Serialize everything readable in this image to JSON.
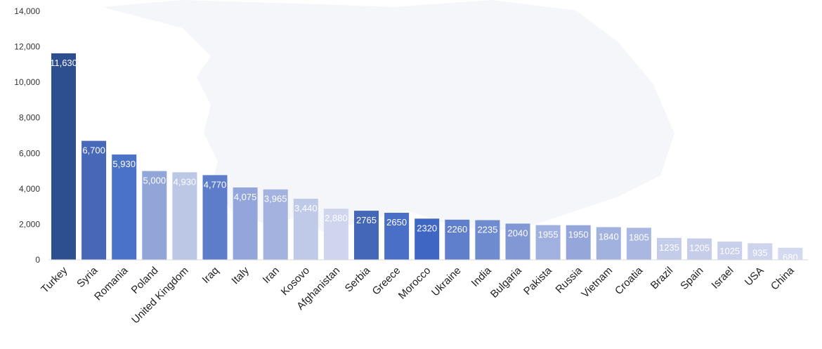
{
  "chart_data": {
    "type": "bar",
    "categories": [
      "Turkey",
      "Syria",
      "Romania",
      "Poland",
      "United Kingdom",
      "Iraq",
      "Italy",
      "Iran",
      "Kosovo",
      "Afghanistan",
      "Serbia",
      "Greece",
      "Morocco",
      "Ukraine",
      "India",
      "Bulgaria",
      "Pakista",
      "Russia",
      "Vietnam",
      "Croatia",
      "Brazil",
      "Spain",
      "Israel",
      "USA",
      "China"
    ],
    "values": [
      11630,
      6700,
      5930,
      5000,
      4930,
      4770,
      4075,
      3965,
      3440,
      2880,
      2765,
      2650,
      2320,
      2260,
      2235,
      2040,
      1955,
      1950,
      1840,
      1805,
      1235,
      1205,
      1025,
      935,
      680
    ],
    "data_labels": [
      "11,630",
      "6,700",
      "5,930",
      "5,000",
      "4,930",
      "4,770",
      "4,075",
      "3,965",
      "3,440",
      "2,880",
      "2765",
      "2650",
      "2320",
      "2260",
      "2235",
      "2040",
      "1955",
      "1950",
      "1840",
      "1805",
      "1235",
      "1205",
      "1025",
      "935",
      "680"
    ],
    "bar_colors": [
      "#2e4f8f",
      "#4668b6",
      "#4a72c7",
      "#92a5d8",
      "#bcc6e5",
      "#5d7dca",
      "#93a6db",
      "#a3b2df",
      "#bfc9e8",
      "#ced5ec",
      "#4467b8",
      "#4a6fc6",
      "#3f66c2",
      "#5f7ecc",
      "#6f8bd0",
      "#8298d4",
      "#a0b0df",
      "#95a7da",
      "#a2b2de",
      "#aab8e1",
      "#c3cde9",
      "#c5cde9",
      "#c8d0eb",
      "#cdd4ec",
      "#d3d9ee"
    ],
    "title": "",
    "xlabel": "",
    "ylabel": "",
    "ylim": [
      0,
      14000
    ],
    "yticks": [
      0,
      2000,
      4000,
      6000,
      8000,
      10000,
      12000,
      14000
    ],
    "ytick_labels": [
      "0",
      "2,000",
      "4,000",
      "6,000",
      "8,000",
      "10,000",
      "12,000",
      "14,000"
    ],
    "grid": false,
    "legend": "none"
  }
}
